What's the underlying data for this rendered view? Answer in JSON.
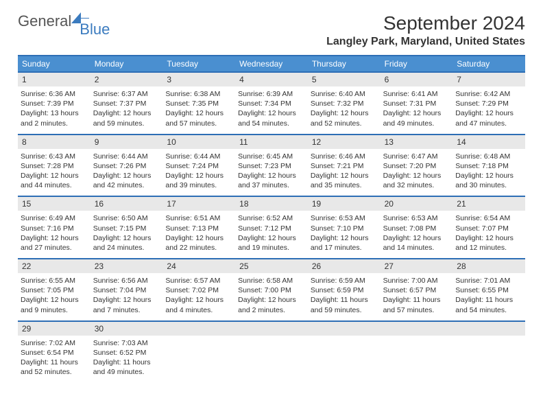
{
  "logo": {
    "text1": "General",
    "text2": "Blue"
  },
  "title": "September 2024",
  "location": "Langley Park, Maryland, United States",
  "colors": {
    "header_bg": "#4a8fd0",
    "rule": "#2d6eb5",
    "daynum_bg": "#e8e8e8",
    "text": "#333333",
    "page_bg": "#ffffff"
  },
  "dow": [
    "Sunday",
    "Monday",
    "Tuesday",
    "Wednesday",
    "Thursday",
    "Friday",
    "Saturday"
  ],
  "weeks": [
    [
      {
        "num": "1",
        "sunrise": "6:36 AM",
        "sunset": "7:39 PM",
        "daylight": "13 hours and 2 minutes."
      },
      {
        "num": "2",
        "sunrise": "6:37 AM",
        "sunset": "7:37 PM",
        "daylight": "12 hours and 59 minutes."
      },
      {
        "num": "3",
        "sunrise": "6:38 AM",
        "sunset": "7:35 PM",
        "daylight": "12 hours and 57 minutes."
      },
      {
        "num": "4",
        "sunrise": "6:39 AM",
        "sunset": "7:34 PM",
        "daylight": "12 hours and 54 minutes."
      },
      {
        "num": "5",
        "sunrise": "6:40 AM",
        "sunset": "7:32 PM",
        "daylight": "12 hours and 52 minutes."
      },
      {
        "num": "6",
        "sunrise": "6:41 AM",
        "sunset": "7:31 PM",
        "daylight": "12 hours and 49 minutes."
      },
      {
        "num": "7",
        "sunrise": "6:42 AM",
        "sunset": "7:29 PM",
        "daylight": "12 hours and 47 minutes."
      }
    ],
    [
      {
        "num": "8",
        "sunrise": "6:43 AM",
        "sunset": "7:28 PM",
        "daylight": "12 hours and 44 minutes."
      },
      {
        "num": "9",
        "sunrise": "6:44 AM",
        "sunset": "7:26 PM",
        "daylight": "12 hours and 42 minutes."
      },
      {
        "num": "10",
        "sunrise": "6:44 AM",
        "sunset": "7:24 PM",
        "daylight": "12 hours and 39 minutes."
      },
      {
        "num": "11",
        "sunrise": "6:45 AM",
        "sunset": "7:23 PM",
        "daylight": "12 hours and 37 minutes."
      },
      {
        "num": "12",
        "sunrise": "6:46 AM",
        "sunset": "7:21 PM",
        "daylight": "12 hours and 35 minutes."
      },
      {
        "num": "13",
        "sunrise": "6:47 AM",
        "sunset": "7:20 PM",
        "daylight": "12 hours and 32 minutes."
      },
      {
        "num": "14",
        "sunrise": "6:48 AM",
        "sunset": "7:18 PM",
        "daylight": "12 hours and 30 minutes."
      }
    ],
    [
      {
        "num": "15",
        "sunrise": "6:49 AM",
        "sunset": "7:16 PM",
        "daylight": "12 hours and 27 minutes."
      },
      {
        "num": "16",
        "sunrise": "6:50 AM",
        "sunset": "7:15 PM",
        "daylight": "12 hours and 24 minutes."
      },
      {
        "num": "17",
        "sunrise": "6:51 AM",
        "sunset": "7:13 PM",
        "daylight": "12 hours and 22 minutes."
      },
      {
        "num": "18",
        "sunrise": "6:52 AM",
        "sunset": "7:12 PM",
        "daylight": "12 hours and 19 minutes."
      },
      {
        "num": "19",
        "sunrise": "6:53 AM",
        "sunset": "7:10 PM",
        "daylight": "12 hours and 17 minutes."
      },
      {
        "num": "20",
        "sunrise": "6:53 AM",
        "sunset": "7:08 PM",
        "daylight": "12 hours and 14 minutes."
      },
      {
        "num": "21",
        "sunrise": "6:54 AM",
        "sunset": "7:07 PM",
        "daylight": "12 hours and 12 minutes."
      }
    ],
    [
      {
        "num": "22",
        "sunrise": "6:55 AM",
        "sunset": "7:05 PM",
        "daylight": "12 hours and 9 minutes."
      },
      {
        "num": "23",
        "sunrise": "6:56 AM",
        "sunset": "7:04 PM",
        "daylight": "12 hours and 7 minutes."
      },
      {
        "num": "24",
        "sunrise": "6:57 AM",
        "sunset": "7:02 PM",
        "daylight": "12 hours and 4 minutes."
      },
      {
        "num": "25",
        "sunrise": "6:58 AM",
        "sunset": "7:00 PM",
        "daylight": "12 hours and 2 minutes."
      },
      {
        "num": "26",
        "sunrise": "6:59 AM",
        "sunset": "6:59 PM",
        "daylight": "11 hours and 59 minutes."
      },
      {
        "num": "27",
        "sunrise": "7:00 AM",
        "sunset": "6:57 PM",
        "daylight": "11 hours and 57 minutes."
      },
      {
        "num": "28",
        "sunrise": "7:01 AM",
        "sunset": "6:55 PM",
        "daylight": "11 hours and 54 minutes."
      }
    ],
    [
      {
        "num": "29",
        "sunrise": "7:02 AM",
        "sunset": "6:54 PM",
        "daylight": "11 hours and 52 minutes."
      },
      {
        "num": "30",
        "sunrise": "7:03 AM",
        "sunset": "6:52 PM",
        "daylight": "11 hours and 49 minutes."
      },
      null,
      null,
      null,
      null,
      null
    ]
  ],
  "labels": {
    "sunrise": "Sunrise:",
    "sunset": "Sunset:",
    "daylight": "Daylight:"
  }
}
